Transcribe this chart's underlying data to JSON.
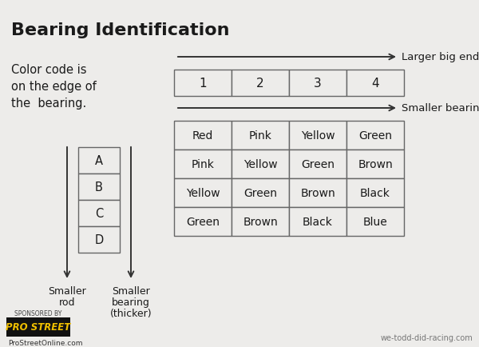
{
  "title": "Bearing Identification",
  "bg_color": "#edecea",
  "text_color": "#1a1a1a",
  "color_code_text": [
    "Color code is",
    "on the edge of",
    "the  bearing."
  ],
  "left_label_col1": [
    "Smaller",
    "rod"
  ],
  "left_label_col2": [
    "Smaller",
    "bearing",
    "(thicker)"
  ],
  "abcd_labels": [
    "A",
    "B",
    "C",
    "D"
  ],
  "header_row": [
    "1",
    "2",
    "3",
    "4"
  ],
  "table_data": [
    [
      "Red",
      "Pink",
      "Yellow",
      "Green"
    ],
    [
      "Pink",
      "Yellow",
      "Green",
      "Brown"
    ],
    [
      "Yellow",
      "Green",
      "Brown",
      "Black"
    ],
    [
      "Green",
      "Brown",
      "Black",
      "Blue"
    ]
  ],
  "arrow1_label": "Larger big end bore",
  "arrow2_label": "Smaller bearing (thicker)",
  "watermark_right": "we-todd-did-racing.com",
  "watermark_left": "ProStreetOnline.com",
  "logo_text": "PRO STREET",
  "sponsored_text": "SPONSORED BY"
}
